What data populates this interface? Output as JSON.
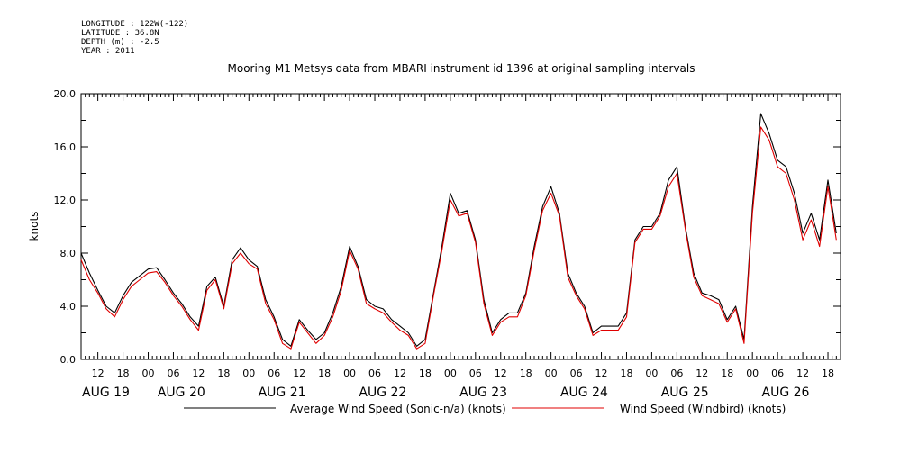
{
  "meta": {
    "longitude": "LONGITUDE : 122W(-122)",
    "latitude": "LATITUDE : 36.8N",
    "depth": "DEPTH (m) : -2.5",
    "year": "YEAR : 2011"
  },
  "colors": {
    "average": "#000000",
    "windbird": "#e00000",
    "axis": "#000000"
  },
  "chart_data": {
    "type": "line",
    "title": "Mooring M1 Metsys data from MBARI instrument id 1396 at original sampling intervals",
    "ylabel": "knots",
    "xlabel": "",
    "ylim": [
      0,
      20
    ],
    "xlim_hours": [
      8,
      189
    ],
    "yticks": [
      "0.0",
      "4.0",
      "8.0",
      "12.0",
      "16.0",
      "20.0"
    ],
    "hour_ticks": [
      {
        "h": 12,
        "label": "12"
      },
      {
        "h": 18,
        "label": "18"
      },
      {
        "h": 24,
        "label": "00"
      },
      {
        "h": 30,
        "label": "06"
      },
      {
        "h": 36,
        "label": "12"
      },
      {
        "h": 42,
        "label": "18"
      },
      {
        "h": 48,
        "label": "00"
      },
      {
        "h": 54,
        "label": "06"
      },
      {
        "h": 60,
        "label": "12"
      },
      {
        "h": 66,
        "label": "18"
      },
      {
        "h": 72,
        "label": "00"
      },
      {
        "h": 78,
        "label": "06"
      },
      {
        "h": 84,
        "label": "12"
      },
      {
        "h": 90,
        "label": "18"
      },
      {
        "h": 96,
        "label": "00"
      },
      {
        "h": 102,
        "label": "06"
      },
      {
        "h": 108,
        "label": "12"
      },
      {
        "h": 114,
        "label": "18"
      },
      {
        "h": 120,
        "label": "00"
      },
      {
        "h": 126,
        "label": "06"
      },
      {
        "h": 132,
        "label": "12"
      },
      {
        "h": 138,
        "label": "18"
      },
      {
        "h": 144,
        "label": "00"
      },
      {
        "h": 150,
        "label": "06"
      },
      {
        "h": 156,
        "label": "12"
      },
      {
        "h": 162,
        "label": "18"
      },
      {
        "h": 168,
        "label": "00"
      },
      {
        "h": 174,
        "label": "06"
      },
      {
        "h": 180,
        "label": "12"
      },
      {
        "h": 186,
        "label": "18"
      }
    ],
    "day_labels": [
      {
        "h": 8,
        "label": "AUG 19"
      },
      {
        "h": 26,
        "label": "AUG 20"
      },
      {
        "h": 50,
        "label": "AUG 21"
      },
      {
        "h": 74,
        "label": "AUG 22"
      },
      {
        "h": 98,
        "label": "AUG 23"
      },
      {
        "h": 122,
        "label": "AUG 24"
      },
      {
        "h": 146,
        "label": "AUG 25"
      },
      {
        "h": 170,
        "label": "AUG 26"
      }
    ],
    "series": [
      {
        "name": "Average Wind Speed (Sonic-n/a) (knots)",
        "color": "#000000",
        "x": [
          8,
          10,
          12,
          14,
          16,
          18,
          20,
          22,
          24,
          26,
          28,
          30,
          32,
          34,
          36,
          38,
          40,
          42,
          44,
          46,
          48,
          50,
          52,
          54,
          56,
          58,
          60,
          62,
          64,
          66,
          68,
          70,
          72,
          74,
          76,
          78,
          80,
          82,
          84,
          86,
          88,
          90,
          92,
          94,
          96,
          98,
          100,
          102,
          104,
          106,
          108,
          110,
          112,
          114,
          116,
          118,
          120,
          122,
          124,
          126,
          128,
          130,
          132,
          134,
          136,
          138,
          140,
          142,
          144,
          146,
          148,
          150,
          152,
          154,
          156,
          158,
          160,
          162,
          164,
          166,
          168,
          170,
          172,
          174,
          176,
          178,
          180,
          182,
          184,
          186,
          188
        ],
        "y": [
          8.0,
          6.5,
          5.2,
          4.0,
          3.5,
          4.8,
          5.8,
          6.3,
          6.8,
          6.9,
          6.0,
          5.0,
          4.2,
          3.2,
          2.5,
          5.5,
          6.2,
          4.0,
          7.5,
          8.4,
          7.5,
          7.0,
          4.5,
          3.2,
          1.5,
          1.0,
          3.0,
          2.2,
          1.5,
          2.0,
          3.5,
          5.5,
          8.5,
          7.0,
          4.5,
          4.0,
          3.8,
          3.0,
          2.5,
          2.0,
          1.0,
          1.5,
          5.0,
          8.5,
          12.5,
          11.0,
          11.2,
          9.0,
          4.5,
          2.0,
          3.0,
          3.5,
          3.5,
          5.0,
          8.5,
          11.5,
          13.0,
          11.0,
          6.5,
          5.0,
          4.0,
          2.0,
          2.5,
          2.5,
          2.5,
          3.5,
          9.0,
          10.0,
          10.0,
          11.0,
          13.5,
          14.5,
          10.0,
          6.5,
          5.0,
          4.8,
          4.5,
          3.0,
          4.0,
          1.5,
          11.5,
          18.5,
          17.0,
          15.0,
          14.5,
          12.5,
          9.5,
          11.0,
          9.0,
          13.5,
          9.5
        ]
      },
      {
        "name": "Wind Speed (Windbird) (knots)",
        "color": "#e00000",
        "x": [
          8,
          10,
          12,
          14,
          16,
          18,
          20,
          22,
          24,
          26,
          28,
          30,
          32,
          34,
          36,
          38,
          40,
          42,
          44,
          46,
          48,
          50,
          52,
          54,
          56,
          58,
          60,
          62,
          64,
          66,
          68,
          70,
          72,
          74,
          76,
          78,
          80,
          82,
          84,
          86,
          88,
          90,
          92,
          94,
          96,
          98,
          100,
          102,
          104,
          106,
          108,
          110,
          112,
          114,
          116,
          118,
          120,
          122,
          124,
          126,
          128,
          130,
          132,
          134,
          136,
          138,
          140,
          142,
          144,
          146,
          148,
          150,
          152,
          154,
          156,
          158,
          160,
          162,
          164,
          166,
          168,
          170,
          172,
          174,
          176,
          178,
          180,
          182,
          184,
          186,
          188
        ],
        "y": [
          7.5,
          6.0,
          5.0,
          3.8,
          3.2,
          4.5,
          5.5,
          6.0,
          6.5,
          6.6,
          5.8,
          4.8,
          4.0,
          3.0,
          2.2,
          5.2,
          6.0,
          3.8,
          7.2,
          8.0,
          7.2,
          6.8,
          4.2,
          3.0,
          1.2,
          0.8,
          2.8,
          2.0,
          1.2,
          1.8,
          3.2,
          5.2,
          8.2,
          6.8,
          4.2,
          3.8,
          3.5,
          2.8,
          2.2,
          1.8,
          0.8,
          1.2,
          4.8,
          8.2,
          12.0,
          10.8,
          11.0,
          8.8,
          4.2,
          1.8,
          2.8,
          3.2,
          3.2,
          4.8,
          8.2,
          11.2,
          12.5,
          10.8,
          6.2,
          4.8,
          3.8,
          1.8,
          2.2,
          2.2,
          2.2,
          3.2,
          8.8,
          9.8,
          9.8,
          10.8,
          13.0,
          14.0,
          9.8,
          6.2,
          4.8,
          4.5,
          4.2,
          2.8,
          3.8,
          1.2,
          11.0,
          17.5,
          16.5,
          14.5,
          14.0,
          12.0,
          9.0,
          10.5,
          8.5,
          13.0,
          9.0
        ]
      }
    ]
  }
}
